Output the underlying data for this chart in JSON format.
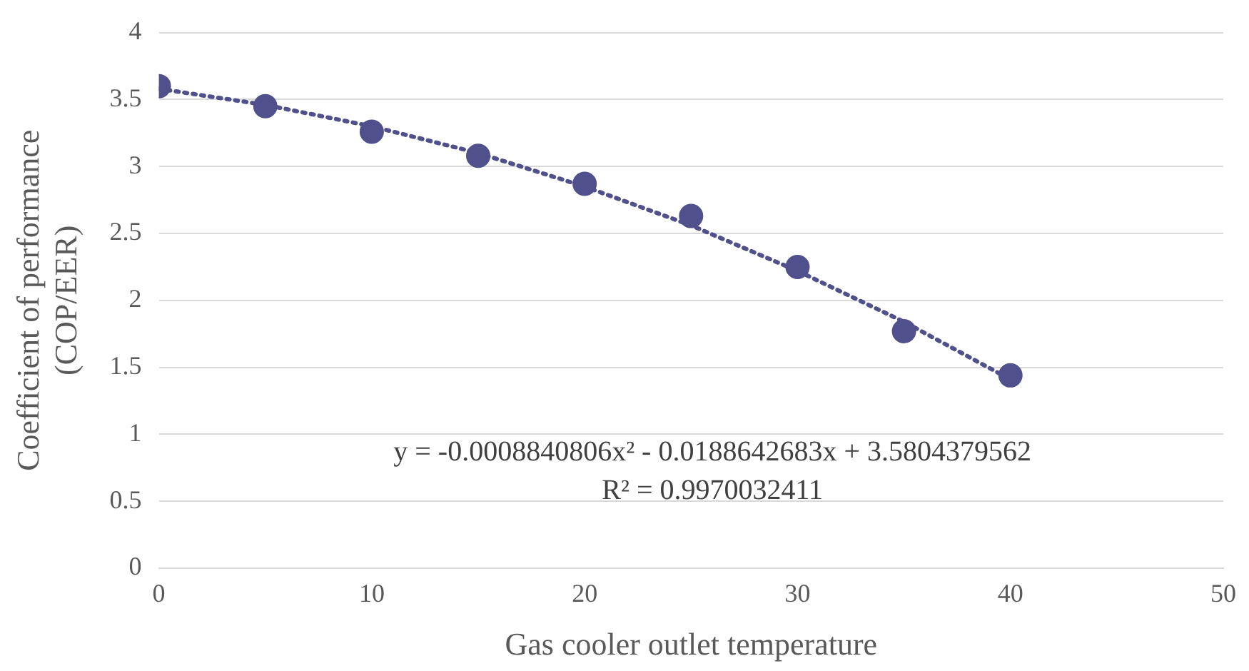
{
  "chart_data": {
    "type": "scatter",
    "xlabel": "Gas cooler outlet temperature",
    "ylabel": "Coefficient of performance\n(COP/EER)",
    "x": [
      0,
      5,
      10,
      15,
      20,
      25,
      30,
      35,
      40
    ],
    "series": [
      {
        "color": "#50508c",
        "values": [
          3.6,
          3.45,
          3.26,
          3.08,
          2.87,
          2.63,
          2.25,
          1.77,
          1.44
        ],
        "marker": "circle"
      },
      {
        "type": "line",
        "color": "#50508c",
        "line_style": "dotted",
        "marker": "none",
        "x": [
          0,
          5,
          10,
          15,
          20,
          25,
          30,
          35,
          40
        ],
        "values": [
          3.58,
          3.46,
          3.3,
          3.1,
          2.85,
          2.56,
          2.22,
          1.84,
          1.41
        ]
      }
    ],
    "xlim": [
      0,
      50
    ],
    "xticks": [
      0,
      10,
      20,
      30,
      40,
      50
    ],
    "ylim": [
      0,
      4
    ],
    "yticks": [
      0,
      0.5,
      1,
      1.5,
      2,
      2.5,
      3,
      3.5,
      4
    ],
    "grid": "y",
    "legend": false,
    "annotations": [
      "y = -0.0008840806x² - 0.0188642683x + 3.5804379562",
      "R² = 0.9970032411"
    ]
  }
}
